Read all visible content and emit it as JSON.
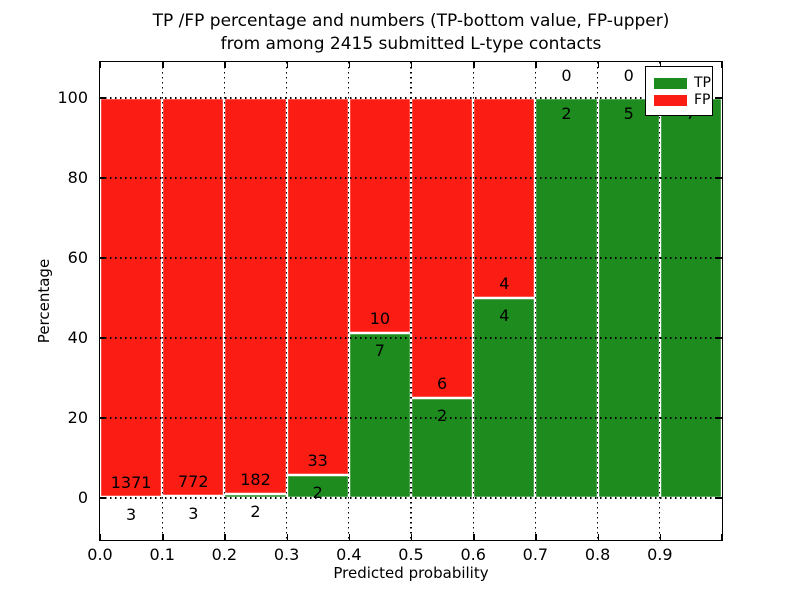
{
  "figure": {
    "title_line1": "TP /FP percentage and numbers (TP-bottom value, FP-upper)",
    "title_line2": "from among 2415 submitted L-type contacts",
    "xlabel": "Predicted probability",
    "ylabel": "Percentage"
  },
  "legend": {
    "tp_label": "TP",
    "fp_label": "FP"
  },
  "colors": {
    "tp": "#1e8b1e",
    "fp": "#fb1d14",
    "grid": "#000000",
    "bar_edge": "#ffffff",
    "axes": "#000000",
    "background": "#ffffff"
  },
  "chart_data": {
    "type": "bar",
    "stacked": true,
    "normalized_to_percent": true,
    "title": "TP /FP percentage and numbers (TP-bottom value, FP-upper) from among 2415 submitted L-type contacts",
    "xlabel": "Predicted probability",
    "ylabel": "Percentage",
    "total_contacts": 2415,
    "categories": [
      "0.0-0.1",
      "0.1-0.2",
      "0.2-0.3",
      "0.3-0.4",
      "0.4-0.5",
      "0.5-0.6",
      "0.6-0.7",
      "0.7-0.8",
      "0.8-0.9",
      "0.9-1.0"
    ],
    "x_tick_labels": [
      "0.0",
      "0.1",
      "0.2",
      "0.3",
      "0.4",
      "0.5",
      "0.6",
      "0.7",
      "0.8",
      "0.9"
    ],
    "y_ticks": [
      0,
      20,
      40,
      60,
      80,
      100
    ],
    "y_tick_labels": [
      "0",
      "20",
      "40",
      "60",
      "80",
      "100"
    ],
    "xlim": [
      0.0,
      1.0
    ],
    "ylim": [
      -10.5,
      109
    ],
    "grid": "dotted, drawn above bars",
    "legend_position": "upper right",
    "series": [
      {
        "name": "TP",
        "counts": [
          3,
          3,
          2,
          2,
          7,
          2,
          4,
          2,
          5,
          7
        ],
        "percent": [
          0.22,
          0.39,
          1.09,
          5.71,
          41.18,
          25.0,
          50.0,
          100.0,
          100.0,
          100.0
        ]
      },
      {
        "name": "FP",
        "counts": [
          1371,
          772,
          182,
          33,
          10,
          6,
          4,
          0,
          0,
          0
        ],
        "percent": [
          99.78,
          99.61,
          98.91,
          94.29,
          58.82,
          75.0,
          50.0,
          0.0,
          0.0,
          0.0
        ]
      }
    ]
  }
}
